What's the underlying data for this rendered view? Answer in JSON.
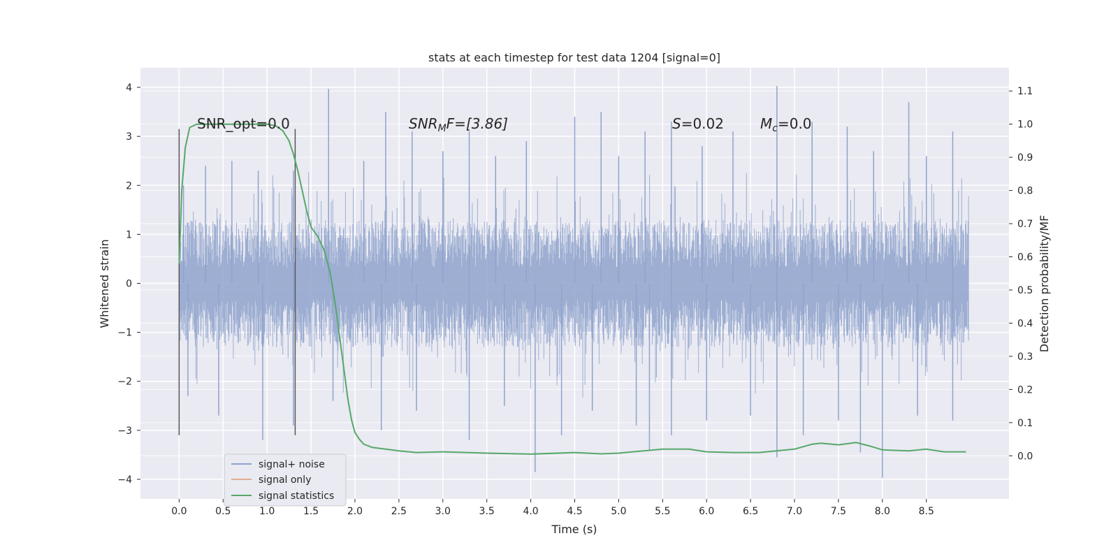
{
  "chart_data": {
    "type": "line",
    "title": "stats at each timestep for test data 1204 [signal=0]",
    "xlabel": "Time (s)",
    "ylabel": "Whitened strain",
    "ylabel_right": "Detection probability/MF",
    "xlim": [
      -0.44,
      9.44
    ],
    "ylim": [
      -4.4,
      4.4
    ],
    "ylim_right": [
      -0.13,
      1.17
    ],
    "x_ticks": [
      "0.0",
      "0.5",
      "1.0",
      "1.5",
      "2.0",
      "2.5",
      "3.0",
      "3.5",
      "4.0",
      "4.5",
      "5.0",
      "5.5",
      "6.0",
      "6.5",
      "7.0",
      "7.5",
      "8.0",
      "8.5"
    ],
    "y_ticks": [
      "−4",
      "−3",
      "−2",
      "−1",
      "0",
      "1",
      "2",
      "3",
      "4"
    ],
    "y_ticks_right": [
      "0.0",
      "0.1",
      "0.2",
      "0.3",
      "0.4",
      "0.5",
      "0.6",
      "0.7",
      "0.8",
      "0.9",
      "1.0",
      "1.1"
    ],
    "grid": true,
    "legend_position": "lower-left",
    "legend": [
      "signal+ noise",
      "signal only",
      "signal statistics"
    ],
    "colors": {
      "noise": "#8fa3cc",
      "signal_only": "#dd8452",
      "statistics": "#55a868",
      "marker_lines": "#555555",
      "plot_bg": "#eaeaf2",
      "grid": "#ffffff"
    },
    "annotations": {
      "snr_opt": "SNR_opt=0.0",
      "snr_mf_main": "SNR",
      "snr_mf_sub": "M",
      "snr_mf_rest": "F=[3.86]",
      "s_var": "S",
      "s_rest": "=0.02",
      "mc_var": "M",
      "mc_sub": "c",
      "mc_rest": "=0.0"
    },
    "series": [
      {
        "name": "signal+ noise",
        "axis": "left",
        "x_range": [
          0.0,
          8.98
        ],
        "band_typical": [
          -1.3,
          1.3
        ],
        "peaks_high": [
          [
            0.05,
            2.0
          ],
          [
            0.3,
            2.4
          ],
          [
            0.6,
            2.5
          ],
          [
            0.9,
            2.3
          ],
          [
            1.3,
            2.3
          ],
          [
            1.7,
            3.97
          ],
          [
            2.1,
            2.5
          ],
          [
            2.35,
            3.5
          ],
          [
            2.65,
            3.1
          ],
          [
            3.0,
            2.7
          ],
          [
            3.3,
            3.1
          ],
          [
            3.6,
            2.6
          ],
          [
            3.95,
            2.9
          ],
          [
            4.5,
            3.4
          ],
          [
            4.8,
            3.5
          ],
          [
            5.0,
            2.6
          ],
          [
            5.3,
            3.1
          ],
          [
            5.6,
            3.3
          ],
          [
            5.95,
            2.8
          ],
          [
            6.3,
            3.1
          ],
          [
            6.8,
            4.03
          ],
          [
            7.2,
            3.3
          ],
          [
            7.6,
            3.2
          ],
          [
            7.9,
            2.7
          ],
          [
            8.3,
            3.7
          ],
          [
            8.5,
            2.6
          ],
          [
            8.8,
            3.1
          ]
        ],
        "peaks_low": [
          [
            0.1,
            -2.3
          ],
          [
            0.45,
            -2.7
          ],
          [
            0.95,
            -3.2
          ],
          [
            1.3,
            -2.9
          ],
          [
            1.75,
            -2.4
          ],
          [
            2.3,
            -3.0
          ],
          [
            2.7,
            -2.6
          ],
          [
            3.3,
            -3.2
          ],
          [
            3.7,
            -2.5
          ],
          [
            4.05,
            -3.85
          ],
          [
            4.35,
            -3.1
          ],
          [
            4.7,
            -2.6
          ],
          [
            5.2,
            -2.9
          ],
          [
            5.35,
            -3.4
          ],
          [
            5.6,
            -3.1
          ],
          [
            6.0,
            -2.8
          ],
          [
            6.5,
            -2.7
          ],
          [
            6.8,
            -3.55
          ],
          [
            7.1,
            -3.1
          ],
          [
            7.5,
            -2.8
          ],
          [
            7.75,
            -3.45
          ],
          [
            8.0,
            -3.97
          ],
          [
            8.4,
            -2.7
          ],
          [
            8.8,
            -2.8
          ]
        ]
      },
      {
        "name": "signal statistics",
        "axis": "right",
        "x": [
          0.0,
          0.03,
          0.07,
          0.12,
          0.2,
          0.35,
          0.55,
          0.8,
          1.0,
          1.1,
          1.18,
          1.25,
          1.3,
          1.35,
          1.4,
          1.45,
          1.5,
          1.58,
          1.65,
          1.72,
          1.78,
          1.83,
          1.88,
          1.92,
          1.96,
          2.0,
          2.05,
          2.1,
          2.2,
          2.35,
          2.5,
          2.7,
          3.0,
          3.5,
          4.0,
          4.5,
          4.8,
          5.0,
          5.5,
          5.8,
          6.0,
          6.3,
          6.6,
          7.0,
          7.2,
          7.3,
          7.5,
          7.7,
          7.85,
          8.0,
          8.3,
          8.5,
          8.7,
          8.95
        ],
        "y": [
          0.58,
          0.8,
          0.93,
          0.99,
          1.0,
          1.0,
          1.0,
          1.0,
          1.0,
          0.995,
          0.98,
          0.95,
          0.91,
          0.86,
          0.8,
          0.74,
          0.69,
          0.66,
          0.62,
          0.55,
          0.45,
          0.35,
          0.25,
          0.17,
          0.11,
          0.07,
          0.05,
          0.035,
          0.025,
          0.02,
          0.015,
          0.01,
          0.012,
          0.008,
          0.005,
          0.01,
          0.006,
          0.008,
          0.02,
          0.02,
          0.012,
          0.01,
          0.01,
          0.02,
          0.035,
          0.038,
          0.033,
          0.04,
          0.03,
          0.018,
          0.015,
          0.02,
          0.012,
          0.012
        ]
      }
    ],
    "vertical_markers": [
      {
        "x": 0.0,
        "y_range": [
          -3.1,
          3.15
        ]
      },
      {
        "x": 1.32,
        "y_range": [
          -3.1,
          3.15
        ]
      }
    ]
  }
}
